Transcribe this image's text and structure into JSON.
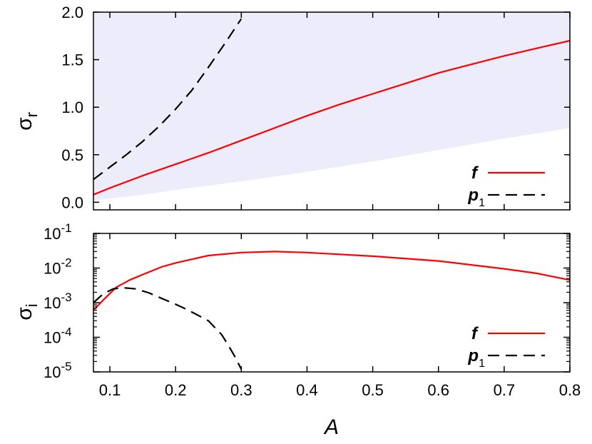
{
  "chart_data": [
    {
      "type": "line",
      "panel": "top",
      "ylabel": "σ",
      "ylabel_sub": "r",
      "xlim": [
        0.075,
        0.8
      ],
      "ylim": [
        -0.08,
        2.0
      ],
      "yticks": [
        "0.0",
        "0.5",
        "1.0",
        "1.5",
        "2.0"
      ],
      "ytick_values": [
        0.0,
        0.5,
        1.0,
        1.5,
        2.0
      ],
      "band": {
        "color": "#ececfb",
        "x": [
          0.075,
          0.1,
          0.15,
          0.2,
          0.3,
          0.4,
          0.5,
          0.6,
          0.7,
          0.8
        ],
        "lower": [
          0.02,
          0.04,
          0.08,
          0.13,
          0.22,
          0.32,
          0.43,
          0.55,
          0.67,
          0.78
        ],
        "upper": [
          2.0,
          2.0,
          2.0,
          2.0,
          2.0,
          2.0,
          2.0,
          2.0,
          2.0,
          2.0
        ]
      },
      "series": [
        {
          "name": "f",
          "color": "#ff0000",
          "dash": "solid",
          "x": [
            0.075,
            0.1,
            0.15,
            0.2,
            0.25,
            0.3,
            0.35,
            0.4,
            0.45,
            0.5,
            0.55,
            0.6,
            0.65,
            0.7,
            0.75,
            0.8
          ],
          "y": [
            0.08,
            0.15,
            0.28,
            0.4,
            0.52,
            0.65,
            0.78,
            0.91,
            1.03,
            1.14,
            1.25,
            1.36,
            1.45,
            1.54,
            1.62,
            1.7
          ]
        },
        {
          "name": "p",
          "name_sub": "1",
          "color": "#000000",
          "dash": "dashed",
          "x": [
            0.075,
            0.1,
            0.125,
            0.15,
            0.175,
            0.2,
            0.225,
            0.25,
            0.275,
            0.3
          ],
          "y": [
            0.24,
            0.37,
            0.5,
            0.64,
            0.8,
            0.98,
            1.18,
            1.42,
            1.67,
            1.93
          ]
        }
      ],
      "legend": {
        "placement": "bottom-right",
        "entries": [
          "f",
          "p1"
        ]
      }
    },
    {
      "type": "line",
      "panel": "bottom",
      "xlabel": "A",
      "ylabel": "σ",
      "ylabel_sub": "i",
      "yscale": "log",
      "xlim": [
        0.075,
        0.8
      ],
      "ylim": [
        1e-05,
        0.1
      ],
      "xticks": [
        "0.1",
        "0.2",
        "0.3",
        "0.4",
        "0.5",
        "0.6",
        "0.7",
        "0.8"
      ],
      "xtick_values": [
        0.1,
        0.2,
        0.3,
        0.4,
        0.5,
        0.6,
        0.7,
        0.8
      ],
      "yticks": [
        {
          "base": "10",
          "exp": "-5",
          "value": 1e-05
        },
        {
          "base": "10",
          "exp": "-4",
          "value": 0.0001
        },
        {
          "base": "10",
          "exp": "-3",
          "value": 0.001
        },
        {
          "base": "10",
          "exp": "-2",
          "value": 0.01
        },
        {
          "base": "10",
          "exp": "-1",
          "value": 0.1
        }
      ],
      "series": [
        {
          "name": "f",
          "color": "#ff0000",
          "dash": "solid",
          "x": [
            0.075,
            0.09,
            0.11,
            0.13,
            0.15,
            0.18,
            0.2,
            0.25,
            0.3,
            0.35,
            0.4,
            0.5,
            0.6,
            0.7,
            0.75,
            0.8
          ],
          "y": [
            0.0006,
            0.0012,
            0.0028,
            0.0045,
            0.0065,
            0.011,
            0.014,
            0.023,
            0.028,
            0.03,
            0.028,
            0.022,
            0.016,
            0.0095,
            0.007,
            0.0045
          ]
        },
        {
          "name": "p",
          "name_sub": "1",
          "color": "#000000",
          "dash": "dashed",
          "x": [
            0.075,
            0.09,
            0.105,
            0.12,
            0.14,
            0.16,
            0.18,
            0.2,
            0.22,
            0.25,
            0.27,
            0.28,
            0.29,
            0.3
          ],
          "y": [
            0.001,
            0.0018,
            0.0025,
            0.0027,
            0.0025,
            0.0019,
            0.0013,
            0.0009,
            0.0006,
            0.0003,
            0.00012,
            6e-05,
            2.8e-05,
            1.2e-05
          ]
        }
      ],
      "legend": {
        "placement": "bottom-right",
        "entries": [
          "f",
          "p1"
        ]
      }
    }
  ]
}
